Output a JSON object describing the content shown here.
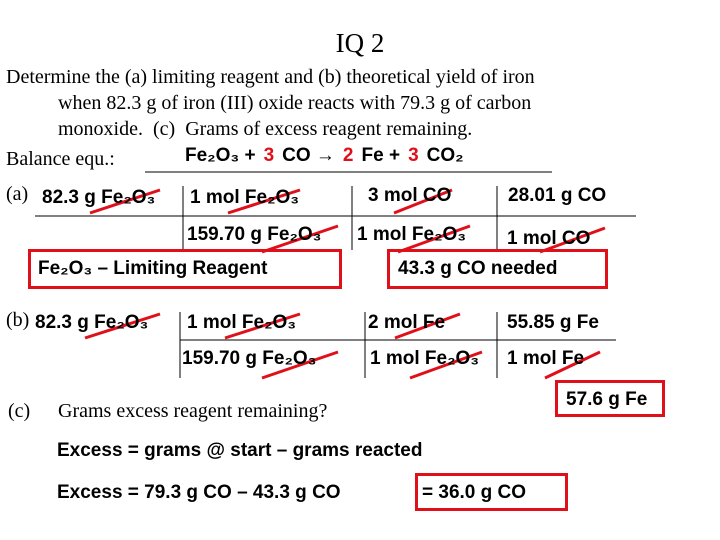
{
  "title": "IQ 2",
  "problem": [
    "Determine the (a) limiting reagent and (b) theoretical yield of iron",
    "when 82.3 g of iron (III) oxide reacts with 79.3 g of carbon",
    "monoxide.  (c)  Grams of excess reagent remaining."
  ],
  "balance": {
    "label": "Balance equ.:",
    "equation": [
      {
        "text": "Fe₂O₃ +",
        "color": "#000000"
      },
      {
        "text": "3",
        "color": "#e0101a"
      },
      {
        "text": "CO →",
        "color": "#000000"
      },
      {
        "text": "2",
        "color": "#e0101a"
      },
      {
        "text": "Fe +",
        "color": "#000000"
      },
      {
        "text": "3",
        "color": "#e0101a"
      },
      {
        "text": "CO₂",
        "color": "#000000"
      }
    ]
  },
  "part_a": {
    "label": "(a)",
    "numerators": [
      "82.3 g Fe₂O₃",
      "1 mol Fe₂O₃",
      "3 mol CO",
      "28.01 g CO"
    ],
    "denominators": [
      "159.70 g Fe₂O₃",
      "1 mol Fe₂O₃",
      "1 mol CO"
    ],
    "results": [
      "Fe₂O₃ – Limiting Reagent",
      "43.3 g CO needed"
    ]
  },
  "part_b": {
    "label": "(b)",
    "numerators": [
      "82.3 g Fe₂O₃",
      "1 mol Fe₂O₃",
      "2 mol Fe",
      "55.85 g Fe"
    ],
    "denominators": [
      "159.70 g Fe₂O₃",
      "1 mol Fe₂O₃",
      "1 mol Fe"
    ],
    "result": "57.6 g Fe"
  },
  "part_c": {
    "label": "(c)",
    "question": "Grams excess reagent remaining?",
    "line1": "Excess = grams @ start – grams reacted",
    "line2": "Excess = 79.3 g CO – 43.3 g CO",
    "answer": "= 36.0 g CO"
  }
}
